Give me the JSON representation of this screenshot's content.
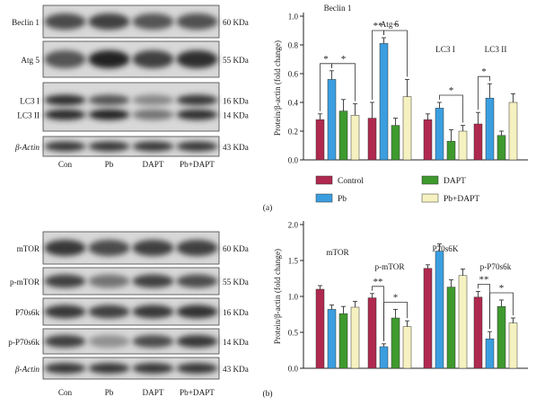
{
  "panels": [
    {
      "caption": "(a)",
      "blot": {
        "rows": [
          "Beclin 1",
          "Atg 5",
          "LC3 I",
          "LC3 II",
          "β-Actin"
        ],
        "kda": [
          "60 KDa",
          "55 KDa",
          "16 KDa",
          "14 KDa",
          "43 KDa"
        ],
        "lanes": [
          "Con",
          "Pb",
          "DAPT",
          "Pb+DAPT"
        ]
      },
      "legend": [
        "Control",
        "Pb",
        "DAPT",
        "Pb+DAPT"
      ]
    },
    {
      "caption": "(b)",
      "blot": {
        "rows": [
          "mTOR",
          "p-mTOR",
          "P70s6k",
          "p-P70s6k",
          "β-Actin"
        ],
        "kda": [
          "60 KDa",
          "55 KDa",
          "16 KDa",
          "14 KDa",
          "43 KDa"
        ],
        "lanes": [
          "Con",
          "Pb",
          "DAPT",
          "Pb+DAPT"
        ]
      },
      "legend": []
    }
  ],
  "colors": {
    "Control": "#b0294e",
    "Pb": "#3b9ee0",
    "DAPT": "#3f9a2e",
    "Pb+DAPT": "#f6f1c0"
  },
  "chart_data": [
    {
      "type": "bar",
      "ylabel": "Protein/β-actin (fold change)",
      "ylim": [
        0,
        1.0
      ],
      "yticks": [
        "0.0",
        "0.2",
        "0.4",
        "0.6",
        "0.8",
        "1.0"
      ],
      "categories": [
        "Beclin 1",
        "Atg 5",
        "LC3 I",
        "LC3 II"
      ],
      "series": [
        {
          "name": "Control",
          "values": [
            0.28,
            0.29,
            0.28,
            0.25
          ],
          "errors": [
            0.04,
            0.11,
            0.04,
            0.08
          ]
        },
        {
          "name": "Pb",
          "values": [
            0.56,
            0.81,
            0.36,
            0.43
          ],
          "errors": [
            0.06,
            0.04,
            0.04,
            0.1
          ]
        },
        {
          "name": "DAPT",
          "values": [
            0.34,
            0.24,
            0.13,
            0.17
          ],
          "errors": [
            0.08,
            0.05,
            0.08,
            0.03
          ]
        },
        {
          "name": "Pb+DAPT",
          "values": [
            0.31,
            0.44,
            0.2,
            0.4
          ],
          "errors": [
            0.08,
            0.12,
            0.04,
            0.06
          ]
        }
      ],
      "significance": [
        {
          "group": 0,
          "from": 0,
          "to": 1,
          "label": "*"
        },
        {
          "group": 0,
          "from": 1,
          "to": 3,
          "label": "*"
        },
        {
          "group": 1,
          "from": 0,
          "to": 1,
          "label": "**"
        },
        {
          "group": 1,
          "from": 1,
          "to": 3,
          "label": "*"
        },
        {
          "group": 2,
          "from": 1,
          "to": 3,
          "label": "*"
        },
        {
          "group": 3,
          "from": 0,
          "to": 1,
          "label": "*"
        }
      ],
      "legend_position": "bottom"
    },
    {
      "type": "bar",
      "ylabel": "Protein/β-actin (fold change)",
      "ylim": [
        0,
        2.0
      ],
      "yticks": [
        "0.0",
        "0.5",
        "1.0",
        "1.5",
        "2.0"
      ],
      "categories": [
        "mTOR",
        "p-mTOR",
        "P70s6K",
        "p-P70s6k"
      ],
      "series": [
        {
          "name": "Control",
          "values": [
            1.1,
            0.98,
            1.39,
            0.99
          ],
          "errors": [
            0.05,
            0.06,
            0.05,
            0.08
          ]
        },
        {
          "name": "Pb",
          "values": [
            0.82,
            0.3,
            1.63,
            0.41
          ],
          "errors": [
            0.06,
            0.04,
            0.1,
            0.1
          ]
        },
        {
          "name": "DAPT",
          "values": [
            0.76,
            0.7,
            1.13,
            0.86
          ],
          "errors": [
            0.1,
            0.12,
            0.1,
            0.09
          ]
        },
        {
          "name": "Pb+DAPT",
          "values": [
            0.85,
            0.58,
            1.29,
            0.63
          ],
          "errors": [
            0.08,
            0.08,
            0.09,
            0.07
          ]
        }
      ],
      "significance": [
        {
          "group": 1,
          "from": 0,
          "to": 1,
          "label": "**"
        },
        {
          "group": 1,
          "from": 1,
          "to": 3,
          "label": "*"
        },
        {
          "group": 3,
          "from": 0,
          "to": 1,
          "label": "**"
        },
        {
          "group": 3,
          "from": 1,
          "to": 3,
          "label": "*"
        }
      ]
    }
  ]
}
